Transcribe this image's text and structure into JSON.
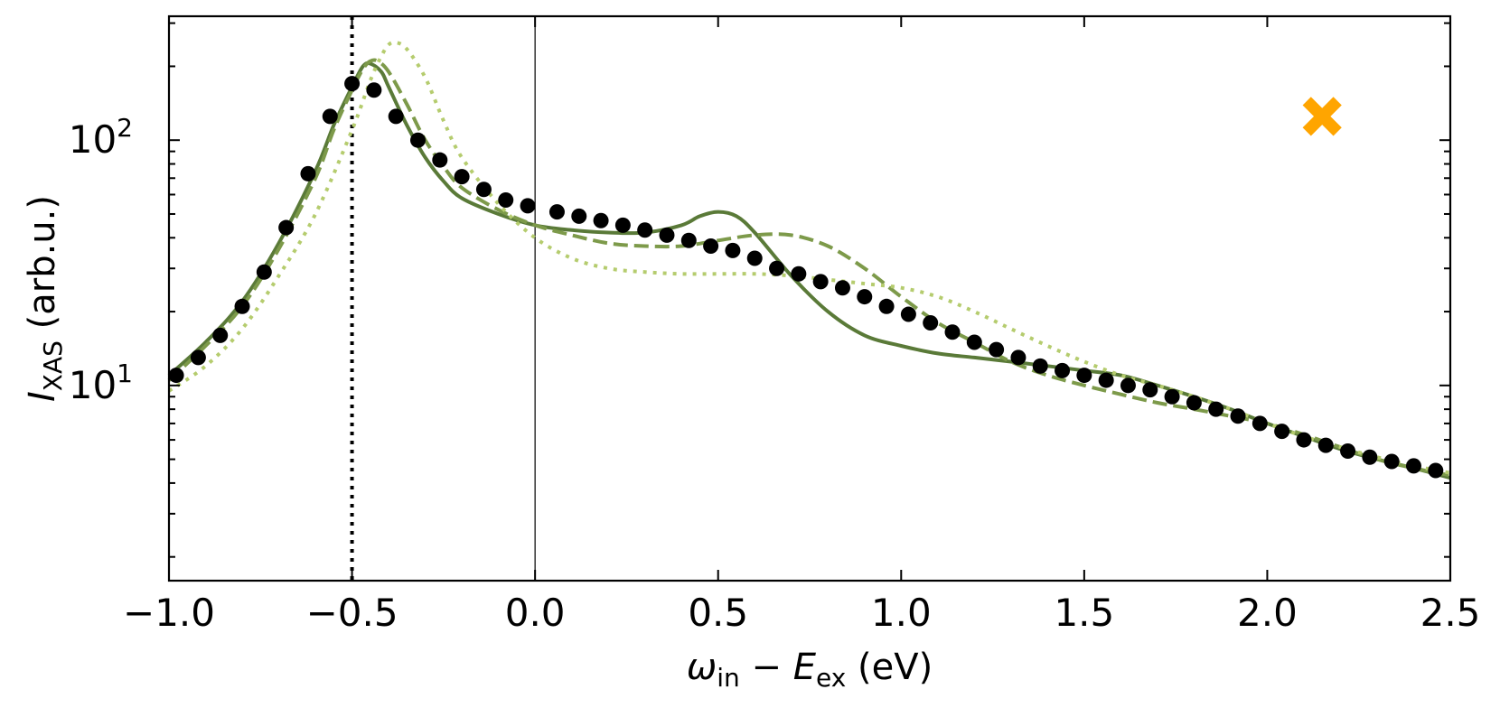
{
  "chart_data": {
    "type": "line",
    "title": "",
    "xlabel": {
      "symbol": "ω",
      "sub1": "in",
      "minus": " − ",
      "symbol2": "E",
      "sub2": "ex",
      "unit": " (eV)"
    },
    "ylabel": {
      "symbol": "I",
      "sub": "XAS",
      "unit": " (arb.u.)"
    },
    "xlim": [
      -1.0,
      2.5
    ],
    "ylim": [
      1.6,
      320
    ],
    "yscale": "log",
    "x_ticks": [
      -1.0,
      -0.5,
      0.0,
      0.5,
      1.0,
      1.5,
      2.0,
      2.5
    ],
    "x_tick_labels": [
      "−1.0",
      "−0.5",
      "0.0",
      "0.5",
      "1.0",
      "1.5",
      "2.0",
      "2.5"
    ],
    "y_ticks": [
      {
        "value": 100,
        "base": "10",
        "exp": "2"
      },
      {
        "value": 10,
        "base": "10",
        "exp": "1"
      }
    ],
    "vlines": [
      {
        "x": -0.5,
        "style": "dotted",
        "color": "#000000"
      },
      {
        "x": 0.0,
        "style": "solid",
        "color": "#000000"
      }
    ],
    "marker": {
      "x": 2.15,
      "y": 125,
      "symbol": "X",
      "color": "#FFA500"
    },
    "series": [
      {
        "name": "solid",
        "style": "solid",
        "color": "#5a7a38",
        "x": [
          -1.0,
          -0.9,
          -0.8,
          -0.7,
          -0.6,
          -0.55,
          -0.5,
          -0.47,
          -0.45,
          -0.42,
          -0.4,
          -0.35,
          -0.3,
          -0.25,
          -0.2,
          -0.1,
          0.0,
          0.1,
          0.2,
          0.3,
          0.4,
          0.45,
          0.5,
          0.55,
          0.6,
          0.7,
          0.8,
          0.9,
          1.0,
          1.1,
          1.2,
          1.3,
          1.4,
          1.5,
          1.6,
          1.7,
          1.8,
          1.9,
          2.0,
          2.1,
          2.2,
          2.3,
          2.4,
          2.5
        ],
        "y": [
          11,
          15,
          22,
          38,
          75,
          115,
          165,
          200,
          205,
          190,
          165,
          115,
          85,
          68,
          58,
          50,
          45,
          43,
          42,
          42,
          45,
          49,
          51,
          49,
          42,
          28,
          20,
          16,
          14.5,
          13.5,
          13,
          12.5,
          12,
          11.5,
          11,
          10,
          9,
          8,
          7,
          6.2,
          5.5,
          5,
          4.6,
          4.2
        ]
      },
      {
        "name": "dashed",
        "style": "dashed",
        "color": "#7d9a4a",
        "x": [
          -1.0,
          -0.9,
          -0.8,
          -0.7,
          -0.6,
          -0.55,
          -0.5,
          -0.47,
          -0.45,
          -0.43,
          -0.4,
          -0.35,
          -0.3,
          -0.25,
          -0.2,
          -0.1,
          0.0,
          0.1,
          0.2,
          0.3,
          0.4,
          0.5,
          0.6,
          0.7,
          0.8,
          0.9,
          1.0,
          1.1,
          1.2,
          1.3,
          1.4,
          1.5,
          1.6,
          1.7,
          1.8,
          1.9,
          2.0,
          2.1,
          2.2,
          2.3,
          2.4,
          2.5
        ],
        "y": [
          10.5,
          14.5,
          21,
          36,
          70,
          110,
          160,
          195,
          210,
          210,
          190,
          140,
          100,
          78,
          64,
          52,
          45,
          41,
          38,
          37,
          37,
          39,
          41,
          41,
          37,
          30,
          23,
          18,
          15,
          12.5,
          11,
          10,
          9.2,
          8.5,
          8,
          7.5,
          7,
          6.3,
          5.6,
          5,
          4.6,
          4.3
        ]
      },
      {
        "name": "dotted",
        "style": "dotted",
        "color": "#b5cc6e",
        "x": [
          -1.0,
          -0.9,
          -0.8,
          -0.7,
          -0.6,
          -0.5,
          -0.45,
          -0.42,
          -0.4,
          -0.38,
          -0.35,
          -0.3,
          -0.25,
          -0.2,
          -0.1,
          0.0,
          0.1,
          0.2,
          0.3,
          0.4,
          0.5,
          0.6,
          0.7,
          0.8,
          0.9,
          1.0,
          1.1,
          1.2,
          1.3,
          1.4,
          1.5,
          1.6,
          1.7,
          1.8,
          1.9,
          2.0,
          2.1,
          2.2,
          2.3,
          2.4,
          2.5
        ],
        "y": [
          9.5,
          12,
          17,
          28,
          50,
          110,
          175,
          220,
          245,
          250,
          235,
          180,
          120,
          85,
          55,
          40,
          33,
          30,
          29,
          28.5,
          28.5,
          28.5,
          28,
          27,
          26,
          25,
          23,
          20,
          17,
          14.5,
          12.5,
          11,
          10,
          9,
          8,
          7,
          6.2,
          5.6,
          5.1,
          4.7,
          4.4
        ]
      },
      {
        "name": "data points",
        "style": "markers",
        "color": "#000000",
        "x": [
          -0.98,
          -0.92,
          -0.86,
          -0.8,
          -0.74,
          -0.68,
          -0.62,
          -0.56,
          -0.5,
          -0.44,
          -0.38,
          -0.32,
          -0.26,
          -0.2,
          -0.14,
          -0.08,
          -0.02,
          0.06,
          0.12,
          0.18,
          0.24,
          0.3,
          0.36,
          0.42,
          0.48,
          0.54,
          0.6,
          0.66,
          0.72,
          0.78,
          0.84,
          0.9,
          0.96,
          1.02,
          1.08,
          1.14,
          1.2,
          1.26,
          1.32,
          1.38,
          1.44,
          1.5,
          1.56,
          1.62,
          1.68,
          1.74,
          1.8,
          1.86,
          1.92,
          1.98,
          2.04,
          2.1,
          2.16,
          2.22,
          2.28,
          2.34,
          2.4,
          2.46
        ],
        "y": [
          11,
          13,
          16,
          21,
          29,
          44,
          73,
          125,
          170,
          160,
          125,
          100,
          83,
          71,
          63,
          57,
          54,
          51,
          49,
          47,
          45,
          43,
          41,
          39,
          37,
          35.5,
          33,
          30,
          28.5,
          26.5,
          25,
          23,
          21,
          19.5,
          18,
          16.5,
          15,
          14,
          13,
          12,
          11.5,
          11,
          10.5,
          10,
          9.6,
          9,
          8.5,
          8,
          7.5,
          7,
          6.5,
          6,
          5.7,
          5.4,
          5.1,
          4.9,
          4.7,
          4.5
        ]
      }
    ]
  }
}
